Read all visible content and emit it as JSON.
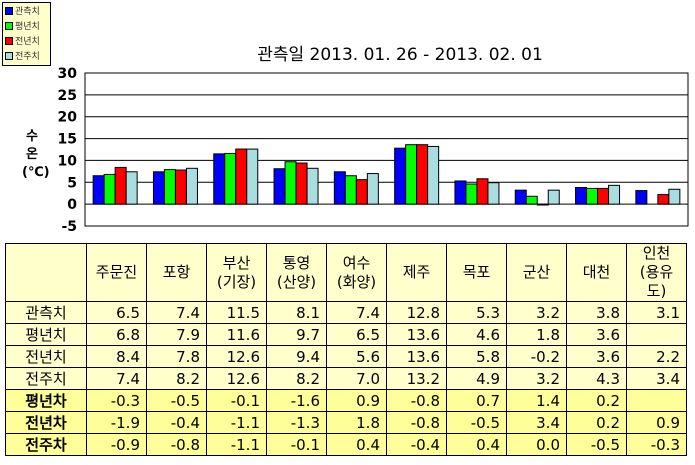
{
  "chart_data": {
    "type": "bar",
    "title": "관측일 2013. 01. 26 -  2013. 02. 01",
    "ylabel": "수 온 (℃)",
    "ylim": [
      -5,
      30
    ],
    "yticks": [
      30,
      25,
      20,
      15,
      10,
      5,
      0,
      -5
    ],
    "grid": true,
    "legend_position": "top-left",
    "categories": [
      "주문진",
      "포항",
      "부산(기장)",
      "통영(산양)",
      "여수(화양)",
      "제주",
      "목포",
      "군산",
      "대천",
      "인천(용유도)"
    ],
    "series": [
      {
        "name": "관측치",
        "color": "#0000FF",
        "values": [
          6.5,
          7.4,
          11.5,
          8.1,
          7.4,
          12.8,
          5.3,
          3.2,
          3.8,
          3.1
        ]
      },
      {
        "name": "평년치",
        "color": "#00FF00",
        "values": [
          6.8,
          7.9,
          11.6,
          9.7,
          6.5,
          13.6,
          4.6,
          1.8,
          3.6,
          null
        ]
      },
      {
        "name": "전년치",
        "color": "#FF0000",
        "values": [
          8.4,
          7.8,
          12.6,
          9.4,
          5.6,
          13.6,
          5.8,
          -0.2,
          3.6,
          2.2
        ]
      },
      {
        "name": "전주치",
        "color": "#A8DEE0",
        "values": [
          7.4,
          8.2,
          12.6,
          8.2,
          7.0,
          13.2,
          4.9,
          3.2,
          4.3,
          3.4
        ]
      }
    ]
  },
  "table": {
    "headers": [
      [
        "주문진",
        ""
      ],
      [
        "포항",
        ""
      ],
      [
        "부산",
        "(기장)"
      ],
      [
        "통영",
        "(산양)"
      ],
      [
        "여수",
        "(화양)"
      ],
      [
        "제주",
        ""
      ],
      [
        "목포",
        ""
      ],
      [
        "군산",
        ""
      ],
      [
        "대천",
        ""
      ],
      [
        "인천",
        "(용유도)"
      ]
    ],
    "rows": [
      {
        "label": "관측치",
        "diff": false,
        "values": [
          "6.5",
          "7.4",
          "11.5",
          "8.1",
          "7.4",
          "12.8",
          "5.3",
          "3.2",
          "3.8",
          "3.1"
        ]
      },
      {
        "label": "평년치",
        "diff": false,
        "values": [
          "6.8",
          "7.9",
          "11.6",
          "9.7",
          "6.5",
          "13.6",
          "4.6",
          "1.8",
          "3.6",
          ""
        ]
      },
      {
        "label": "전년치",
        "diff": false,
        "values": [
          "8.4",
          "7.8",
          "12.6",
          "9.4",
          "5.6",
          "13.6",
          "5.8",
          "-0.2",
          "3.6",
          "2.2"
        ]
      },
      {
        "label": "전주치",
        "diff": false,
        "values": [
          "7.4",
          "8.2",
          "12.6",
          "8.2",
          "7.0",
          "13.2",
          "4.9",
          "3.2",
          "4.3",
          "3.4"
        ]
      },
      {
        "label": "평년차",
        "diff": true,
        "values": [
          "-0.3",
          "-0.5",
          "-0.1",
          "-1.6",
          "0.9",
          "-0.8",
          "0.7",
          "1.4",
          "0.2",
          ""
        ]
      },
      {
        "label": "전년차",
        "diff": true,
        "values": [
          "-1.9",
          "-0.4",
          "-1.1",
          "-1.3",
          "1.8",
          "-0.8",
          "-0.5",
          "3.4",
          "0.2",
          "0.9"
        ]
      },
      {
        "label": "전주차",
        "diff": true,
        "values": [
          "-0.9",
          "-0.8",
          "-1.1",
          "-0.1",
          "0.4",
          "-0.4",
          "0.4",
          "0.0",
          "-0.5",
          "-0.3"
        ]
      }
    ]
  }
}
